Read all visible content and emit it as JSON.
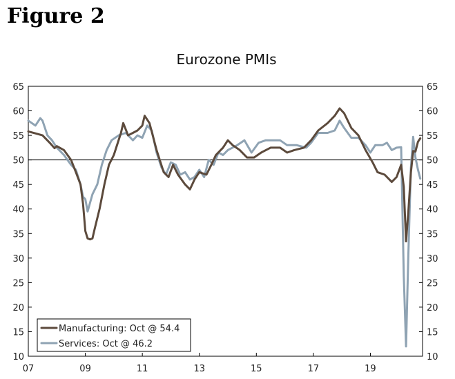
{
  "figure_label": "Figure 2",
  "chart_data": {
    "type": "line",
    "title": "Eurozone PMIs",
    "xlabel": "",
    "ylabel": "",
    "ylim": [
      10,
      65
    ],
    "yticks": [
      "10",
      "15",
      "20",
      "25",
      "30",
      "35",
      "40",
      "45",
      "50",
      "55",
      "60",
      "65"
    ],
    "xlim": [
      2007.0,
      2020.83
    ],
    "xticks": [
      {
        "label": "07",
        "x": 2007
      },
      {
        "label": "09",
        "x": 2009
      },
      {
        "label": "11",
        "x": 2011
      },
      {
        "label": "13",
        "x": 2013
      },
      {
        "label": "15",
        "x": 2015
      },
      {
        "label": "17",
        "x": 2017
      },
      {
        "label": "19",
        "x": 2019
      }
    ],
    "reference_line": 50,
    "grid": false,
    "legend_position": "bottom-left",
    "colors": {
      "manufacturing": "#5c4a3c",
      "services": "#8fa3b3",
      "axis": "#000000"
    },
    "series": [
      {
        "name": "Manufacturing: Oct @ 54.4",
        "points": [
          [
            2007.0,
            55.8
          ],
          [
            2007.25,
            55.4
          ],
          [
            2007.5,
            55.0
          ],
          [
            2007.75,
            53.5
          ],
          [
            2007.92,
            52.4
          ],
          [
            2008.0,
            52.8
          ],
          [
            2008.25,
            52.0
          ],
          [
            2008.5,
            50.0
          ],
          [
            2008.67,
            47.5
          ],
          [
            2008.83,
            45.0
          ],
          [
            2008.92,
            41.0
          ],
          [
            2009.0,
            35.5
          ],
          [
            2009.08,
            34.0
          ],
          [
            2009.17,
            33.8
          ],
          [
            2009.25,
            34.0
          ],
          [
            2009.33,
            36.0
          ],
          [
            2009.5,
            40.0
          ],
          [
            2009.67,
            45.0
          ],
          [
            2009.83,
            49.0
          ],
          [
            2010.0,
            51.0
          ],
          [
            2010.25,
            55.5
          ],
          [
            2010.33,
            57.5
          ],
          [
            2010.5,
            55.0
          ],
          [
            2010.67,
            55.5
          ],
          [
            2010.83,
            56.0
          ],
          [
            2011.0,
            57.0
          ],
          [
            2011.08,
            59.0
          ],
          [
            2011.25,
            57.5
          ],
          [
            2011.5,
            52.0
          ],
          [
            2011.75,
            47.5
          ],
          [
            2011.92,
            46.5
          ],
          [
            2012.08,
            49.0
          ],
          [
            2012.25,
            47.0
          ],
          [
            2012.5,
            45.0
          ],
          [
            2012.67,
            44.0
          ],
          [
            2012.83,
            46.0
          ],
          [
            2013.0,
            47.5
          ],
          [
            2013.25,
            47.0
          ],
          [
            2013.42,
            49.0
          ],
          [
            2013.58,
            51.0
          ],
          [
            2013.83,
            52.5
          ],
          [
            2014.0,
            54.0
          ],
          [
            2014.17,
            53.0
          ],
          [
            2014.42,
            52.0
          ],
          [
            2014.67,
            50.5
          ],
          [
            2014.92,
            50.5
          ],
          [
            2015.17,
            51.5
          ],
          [
            2015.5,
            52.5
          ],
          [
            2015.83,
            52.5
          ],
          [
            2016.08,
            51.5
          ],
          [
            2016.33,
            52.0
          ],
          [
            2016.67,
            52.5
          ],
          [
            2016.92,
            54.0
          ],
          [
            2017.17,
            56.0
          ],
          [
            2017.5,
            57.5
          ],
          [
            2017.75,
            59.0
          ],
          [
            2017.92,
            60.5
          ],
          [
            2018.08,
            59.5
          ],
          [
            2018.33,
            56.5
          ],
          [
            2018.58,
            55.0
          ],
          [
            2018.83,
            52.0
          ],
          [
            2019.08,
            49.5
          ],
          [
            2019.25,
            47.5
          ],
          [
            2019.5,
            47.0
          ],
          [
            2019.75,
            45.5
          ],
          [
            2019.92,
            46.5
          ],
          [
            2020.08,
            49.0
          ],
          [
            2020.17,
            44.5
          ],
          [
            2020.25,
            33.4
          ],
          [
            2020.33,
            39.4
          ],
          [
            2020.42,
            47.4
          ],
          [
            2020.5,
            51.8
          ],
          [
            2020.58,
            51.7
          ],
          [
            2020.67,
            53.7
          ],
          [
            2020.75,
            54.4
          ]
        ]
      },
      {
        "name": "Services: Oct @ 46.2",
        "points": [
          [
            2007.0,
            58.0
          ],
          [
            2007.25,
            57.0
          ],
          [
            2007.42,
            58.5
          ],
          [
            2007.5,
            58.0
          ],
          [
            2007.67,
            55.0
          ],
          [
            2007.83,
            54.0
          ],
          [
            2008.0,
            52.5
          ],
          [
            2008.25,
            51.0
          ],
          [
            2008.5,
            49.0
          ],
          [
            2008.67,
            48.0
          ],
          [
            2008.83,
            45.0
          ],
          [
            2008.92,
            42.5
          ],
          [
            2009.0,
            42.0
          ],
          [
            2009.08,
            39.5
          ],
          [
            2009.25,
            43.0
          ],
          [
            2009.42,
            45.0
          ],
          [
            2009.58,
            49.0
          ],
          [
            2009.75,
            52.0
          ],
          [
            2009.92,
            54.0
          ],
          [
            2010.17,
            55.0
          ],
          [
            2010.42,
            55.5
          ],
          [
            2010.67,
            54.0
          ],
          [
            2010.83,
            55.0
          ],
          [
            2011.0,
            54.5
          ],
          [
            2011.17,
            57.0
          ],
          [
            2011.33,
            56.0
          ],
          [
            2011.5,
            51.5
          ],
          [
            2011.67,
            48.5
          ],
          [
            2011.83,
            47.0
          ],
          [
            2012.0,
            49.5
          ],
          [
            2012.17,
            49.0
          ],
          [
            2012.33,
            47.0
          ],
          [
            2012.5,
            47.5
          ],
          [
            2012.67,
            46.0
          ],
          [
            2012.83,
            46.5
          ],
          [
            2013.0,
            48.0
          ],
          [
            2013.17,
            46.5
          ],
          [
            2013.33,
            50.0
          ],
          [
            2013.5,
            49.0
          ],
          [
            2013.67,
            51.5
          ],
          [
            2013.83,
            51.0
          ],
          [
            2014.0,
            52.0
          ],
          [
            2014.33,
            53.0
          ],
          [
            2014.58,
            54.0
          ],
          [
            2014.83,
            51.5
          ],
          [
            2015.08,
            53.5
          ],
          [
            2015.33,
            54.0
          ],
          [
            2015.58,
            54.0
          ],
          [
            2015.83,
            54.0
          ],
          [
            2016.08,
            53.0
          ],
          [
            2016.42,
            53.0
          ],
          [
            2016.75,
            52.5
          ],
          [
            2016.92,
            53.5
          ],
          [
            2017.17,
            55.5
          ],
          [
            2017.5,
            55.5
          ],
          [
            2017.75,
            56.0
          ],
          [
            2017.92,
            58.0
          ],
          [
            2018.08,
            56.5
          ],
          [
            2018.33,
            54.5
          ],
          [
            2018.58,
            54.5
          ],
          [
            2018.83,
            53.0
          ],
          [
            2019.0,
            51.5
          ],
          [
            2019.17,
            53.0
          ],
          [
            2019.42,
            53.0
          ],
          [
            2019.58,
            53.5
          ],
          [
            2019.75,
            52.0
          ],
          [
            2019.92,
            52.5
          ],
          [
            2020.08,
            52.6
          ],
          [
            2020.17,
            26.4
          ],
          [
            2020.25,
            12.0
          ],
          [
            2020.33,
            30.5
          ],
          [
            2020.42,
            48.3
          ],
          [
            2020.5,
            54.7
          ],
          [
            2020.58,
            50.5
          ],
          [
            2020.67,
            48.0
          ],
          [
            2020.75,
            46.2
          ]
        ]
      }
    ]
  }
}
